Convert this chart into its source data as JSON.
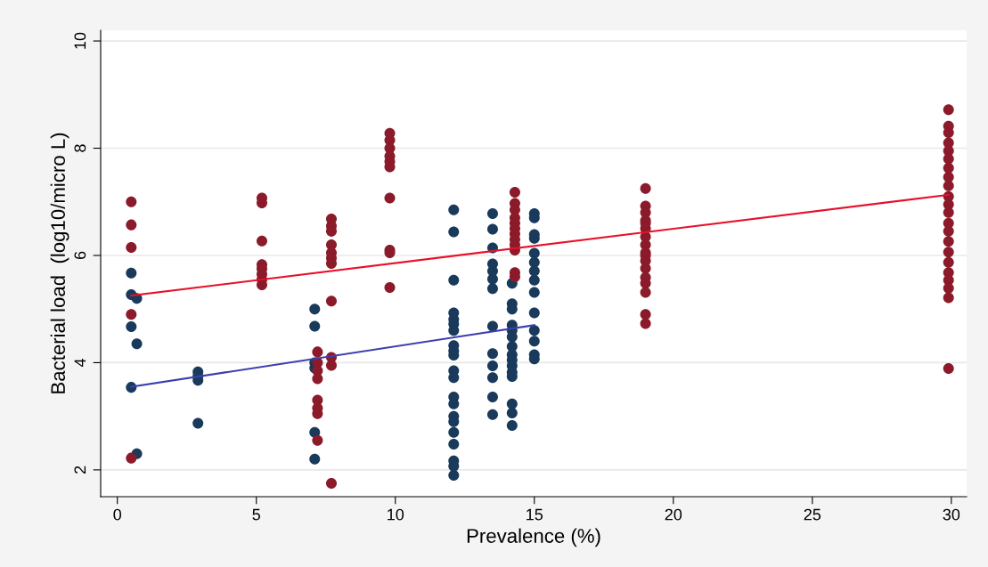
{
  "chart_data": {
    "type": "scatter",
    "xlabel": "Prevalence (%)",
    "ylabel": "Bacterial load  (log10/micro L)",
    "xlim": [
      -0.6,
      30.55
    ],
    "xticks": [
      0,
      5,
      10,
      15,
      20,
      25,
      30
    ],
    "ylim": [
      1.5,
      10.2
    ],
    "yticks": [
      2,
      4,
      6,
      8,
      10
    ],
    "grid": "y",
    "series": [
      {
        "marker": "circle",
        "color": "#1a3a5c",
        "x": [
          0.5,
          0.5,
          0.5,
          0.5,
          0.7,
          0.7,
          0.7,
          2.9,
          2.9,
          2.9,
          2.9,
          7.1,
          7.1,
          7.1,
          7.1,
          7.1,
          7.1,
          12.1,
          12.1,
          12.1,
          12.1,
          12.1,
          12.1,
          12.1,
          12.1,
          12.1,
          12.1,
          12.1,
          12.1,
          12.1,
          12.1,
          12.1,
          12.1,
          12.1,
          12.1,
          12.1,
          12.1,
          12.1,
          13.5,
          13.5,
          13.5,
          13.5,
          13.5,
          13.5,
          13.5,
          13.5,
          13.5,
          13.5,
          13.5,
          13.5,
          13.5,
          14.2,
          14.2,
          14.2,
          14.2,
          14.2,
          14.2,
          14.2,
          14.2,
          14.2,
          14.2,
          14.2,
          14.2,
          14.2,
          14.2,
          14.2,
          15.0,
          15.0,
          15.0,
          15.0,
          15.0,
          15.0,
          15.0,
          15.0,
          15.0,
          15.0,
          15.0,
          15.0,
          15.0,
          15.0
        ],
        "values": [
          5.67,
          5.27,
          4.67,
          3.54,
          5.2,
          4.35,
          2.3,
          3.83,
          3.75,
          3.67,
          2.87,
          5.0,
          4.68,
          4.0,
          3.9,
          2.7,
          2.2,
          6.85,
          6.44,
          5.54,
          4.93,
          4.81,
          4.72,
          4.6,
          4.32,
          4.22,
          4.14,
          3.85,
          3.72,
          3.36,
          3.23,
          3.0,
          2.9,
          2.7,
          2.48,
          2.17,
          2.07,
          1.9,
          6.78,
          6.49,
          6.14,
          5.84,
          5.71,
          5.56,
          5.38,
          4.68,
          4.17,
          3.94,
          3.72,
          3.36,
          3.03,
          5.48,
          5.1,
          5.0,
          4.7,
          4.6,
          4.48,
          4.3,
          4.15,
          4.05,
          3.94,
          3.82,
          3.74,
          3.23,
          3.06,
          2.83,
          6.78,
          6.7,
          6.39,
          6.32,
          6.04,
          5.87,
          5.71,
          5.54,
          5.31,
          4.93,
          4.6,
          4.4,
          4.15,
          4.07
        ]
      },
      {
        "marker": "circle",
        "color": "#8b1a2a",
        "x": [
          0.5,
          0.5,
          0.5,
          0.5,
          0.5,
          5.2,
          5.2,
          5.2,
          5.2,
          5.2,
          5.2,
          5.2,
          5.2,
          7.2,
          7.2,
          7.2,
          7.2,
          7.2,
          7.2,
          7.2,
          7.2,
          7.7,
          7.7,
          7.7,
          7.7,
          7.7,
          7.7,
          7.7,
          7.7,
          7.7,
          7.7,
          7.7,
          9.8,
          9.8,
          9.8,
          9.8,
          9.8,
          9.8,
          9.8,
          9.8,
          9.8,
          9.8,
          14.3,
          14.3,
          14.3,
          14.3,
          14.3,
          14.3,
          14.3,
          14.3,
          14.3,
          14.3,
          14.3,
          14.3,
          19.0,
          19.0,
          19.0,
          19.0,
          19.0,
          19.0,
          19.0,
          19.0,
          19.0,
          19.0,
          19.0,
          19.0,
          19.0,
          19.0,
          19.0,
          19.0,
          19.0,
          29.9,
          29.9,
          29.9,
          29.9,
          29.9,
          29.9,
          29.9,
          29.9,
          29.9,
          29.9,
          29.9,
          29.9,
          29.9,
          29.9,
          29.9,
          29.9,
          29.9,
          29.9,
          29.9,
          29.9,
          29.9,
          29.9
        ],
        "values": [
          7.0,
          6.57,
          6.15,
          4.9,
          2.22,
          7.07,
          6.98,
          6.27,
          5.83,
          5.75,
          5.65,
          5.55,
          5.45,
          4.2,
          4.0,
          3.85,
          3.7,
          3.3,
          3.15,
          3.05,
          2.55,
          6.68,
          6.55,
          6.45,
          6.2,
          6.05,
          5.95,
          5.85,
          5.15,
          4.1,
          3.95,
          1.75,
          8.28,
          8.15,
          8.0,
          7.85,
          7.75,
          7.65,
          7.07,
          6.1,
          6.05,
          5.4,
          7.18,
          6.97,
          6.85,
          6.7,
          6.6,
          6.5,
          6.4,
          6.3,
          6.2,
          6.1,
          5.68,
          5.6,
          7.25,
          6.92,
          6.8,
          6.65,
          6.5,
          6.35,
          6.2,
          6.05,
          5.9,
          5.76,
          5.59,
          5.48,
          5.31,
          4.9,
          4.73,
          6.6,
          6.0,
          8.72,
          8.41,
          8.29,
          8.1,
          7.95,
          7.8,
          7.63,
          7.46,
          7.3,
          7.1,
          6.95,
          6.8,
          6.6,
          6.45,
          6.26,
          6.06,
          5.87,
          5.68,
          5.54,
          5.39,
          5.21,
          3.89
        ]
      },
      {
        "type": "line",
        "color": "#3b3fae",
        "x": [
          0.5,
          15.0
        ],
        "values": [
          3.55,
          4.7
        ]
      },
      {
        "type": "line",
        "color": "#e8102a",
        "x": [
          0.5,
          29.9
        ],
        "values": [
          5.25,
          7.13
        ]
      }
    ]
  }
}
